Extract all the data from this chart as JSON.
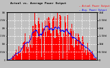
{
  "title": "Average Power Output",
  "title_prefix": "Actual vs.",
  "legend_actual": "Actual Power Output",
  "legend_average": "Avg. Power Output",
  "ylabel_right": [
    "3kW",
    "2.5kW",
    "2kW",
    "1.5kW",
    "1kW",
    "0.5kW",
    "0"
  ],
  "ylim": [
    0,
    3.0
  ],
  "background_color": "#c0c0c0",
  "plot_bg_color": "#c0c0c0",
  "grid_color": "#ffffff",
  "bar_color": "#ff0000",
  "avg_color": "#0000ff",
  "num_points": 365,
  "figsize": [
    1.6,
    1.0
  ],
  "dpi": 100
}
